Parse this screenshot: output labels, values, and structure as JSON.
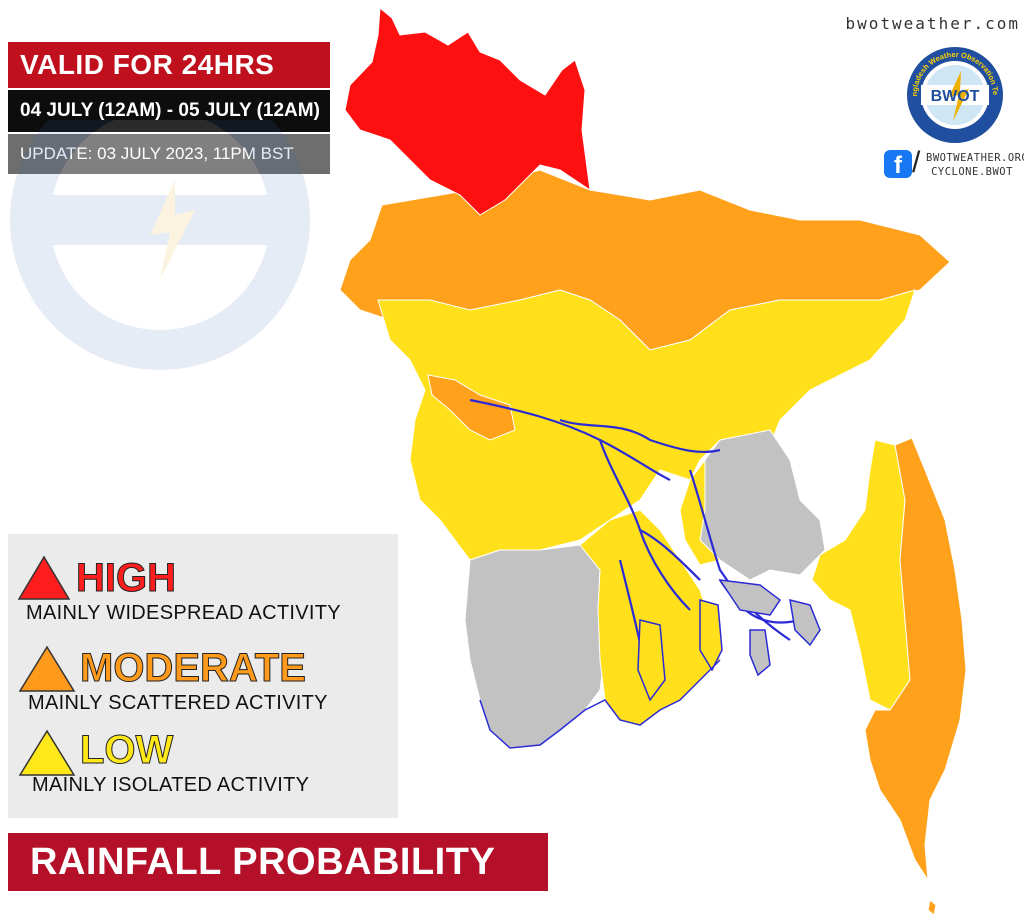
{
  "header": {
    "valid_label": "VALID FOR 24HRS",
    "date_range": "04 JULY (12AM) - 05 JULY (12AM)",
    "update": "UPDATE: 03 JULY 2023, 11PM BST"
  },
  "branding": {
    "site_url": "bwotweather.com",
    "logo_text": "BWOT",
    "logo_ring_text": "Bangladesh Weather Observation Team",
    "social_line1": "BWOTWEATHER.ORG",
    "social_line2": "CYCLONE.BWOT",
    "facebook_glyph": "f",
    "slash_glyph": "/"
  },
  "legend": {
    "items": [
      {
        "level": "HIGH",
        "description": "MAINLY WIDESPREAD ACTIVITY",
        "color": "#ff1e1e"
      },
      {
        "level": "MODERATE",
        "description": "MAINLY SCATTERED ACTIVITY",
        "color": "#ff9a1c"
      },
      {
        "level": "LOW",
        "description": "MAINLY ISOLATED ACTIVITY",
        "color": "#ffe81a"
      }
    ]
  },
  "footer": {
    "title": "RAINFALL PROBABILITY"
  },
  "map_colors": {
    "high": "#ff1010",
    "moderate": "#ffa11a",
    "low": "#ffe01a",
    "none": "#c2c2c2",
    "rivers": "#2b2bd6",
    "borders": "#ffffff"
  }
}
